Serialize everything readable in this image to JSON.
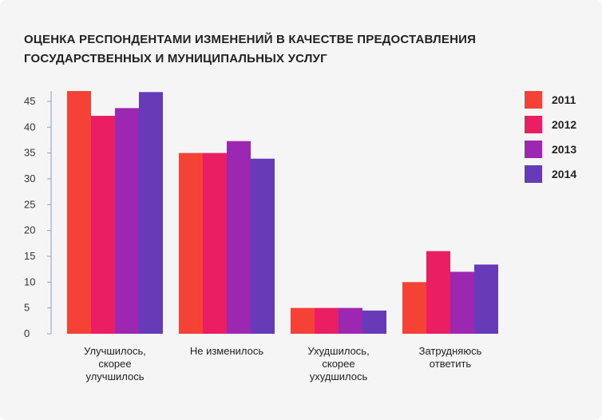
{
  "title_lines": [
    "ОЦЕНКА РЕСПОНДЕНТАМИ ИЗМЕНЕНИЙ В КАЧЕСТВЕ ПРЕДОСТАВЛЕНИЯ",
    "ГОСУДАРСТВЕННЫХ И МУНИЦИПАЛЬНЫХ УСЛУГ"
  ],
  "chart_data": {
    "type": "bar",
    "title": "ОЦЕНКА РЕСПОНДЕНТАМИ ИЗМЕНЕНИЙ В КАЧЕСТВЕ ПРЕДОСТАВЛЕНИЯ ГОСУДАРСТВЕННЫХ И МУНИЦИПАЛЬНЫХ УСЛУГ",
    "categories": [
      [
        "Улучшилось,",
        "скорее",
        "улучшилось"
      ],
      [
        "Не изменилось"
      ],
      [
        "Ухудшилось,",
        "скорее",
        "ухудшилось"
      ],
      [
        "Затрудняюсь",
        "ответить"
      ]
    ],
    "series": [
      {
        "name": "2011",
        "color": "#f44336",
        "values": [
          47,
          35,
          5,
          10
        ]
      },
      {
        "name": "2012",
        "color": "#e91e63",
        "values": [
          42.2,
          35,
          5,
          16
        ]
      },
      {
        "name": "2013",
        "color": "#9c27b0",
        "values": [
          43.7,
          37.3,
          5,
          12
        ]
      },
      {
        "name": "2014",
        "color": "#673ab7",
        "values": [
          46.8,
          33.9,
          4.5,
          13.4
        ]
      }
    ],
    "y_ticks": [
      0,
      5,
      10,
      15,
      20,
      25,
      30,
      35,
      40,
      45
    ],
    "ylim": [
      0,
      47
    ],
    "xlabel": "",
    "ylabel": "",
    "grid": false,
    "legend_position": "top-right",
    "axis_color": "#8c9be0"
  }
}
